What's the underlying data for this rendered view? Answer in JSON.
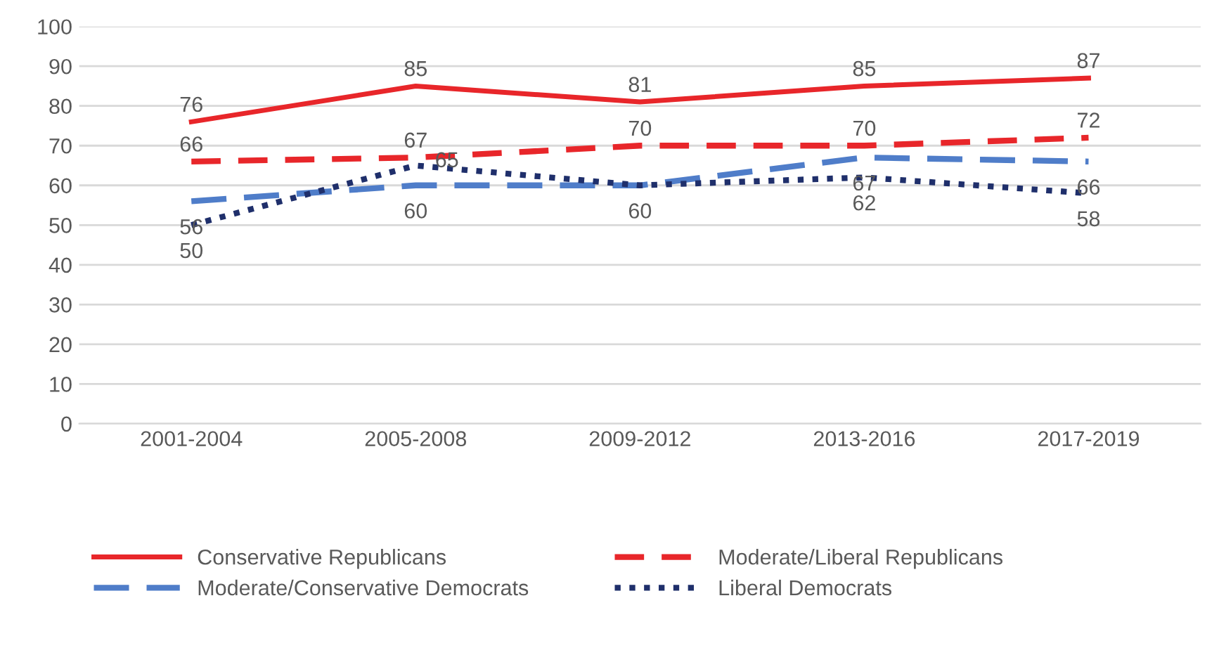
{
  "chart_data": {
    "type": "line",
    "categories": [
      "2001-2004",
      "2005-2008",
      "2009-2012",
      "2013-2016",
      "2017-2019"
    ],
    "series": [
      {
        "name": "Conservative Republicans",
        "color": "#e8262a",
        "line_style": "solid",
        "values": [
          76,
          85,
          81,
          85,
          87
        ],
        "value_labels": [
          "76",
          "85",
          "81",
          "85",
          "87"
        ]
      },
      {
        "name": "Moderate/Liberal Republicans",
        "color": "#e8262a",
        "line_style": "dashed",
        "values": [
          66,
          67,
          70,
          70,
          72
        ],
        "value_labels": [
          "66",
          "67",
          "70",
          "70",
          "72"
        ]
      },
      {
        "name": "Moderate/Conservative Democrats",
        "color": "#4f7dc9",
        "line_style": "dashed",
        "values": [
          56,
          60,
          60,
          67,
          66
        ],
        "value_labels": [
          "56",
          "60",
          "60",
          "67",
          "66"
        ]
      },
      {
        "name": "Liberal Democrats",
        "color": "#1f2f6b",
        "line_style": "dotted",
        "values": [
          50,
          65,
          60,
          62,
          58
        ],
        "value_labels": [
          "50",
          "65",
          null,
          "62",
          "58"
        ]
      }
    ],
    "ylim": [
      0,
      100
    ],
    "yticks": [
      0,
      10,
      20,
      30,
      40,
      50,
      60,
      70,
      80,
      90,
      100
    ],
    "grid": "y",
    "legend": "bottom"
  }
}
